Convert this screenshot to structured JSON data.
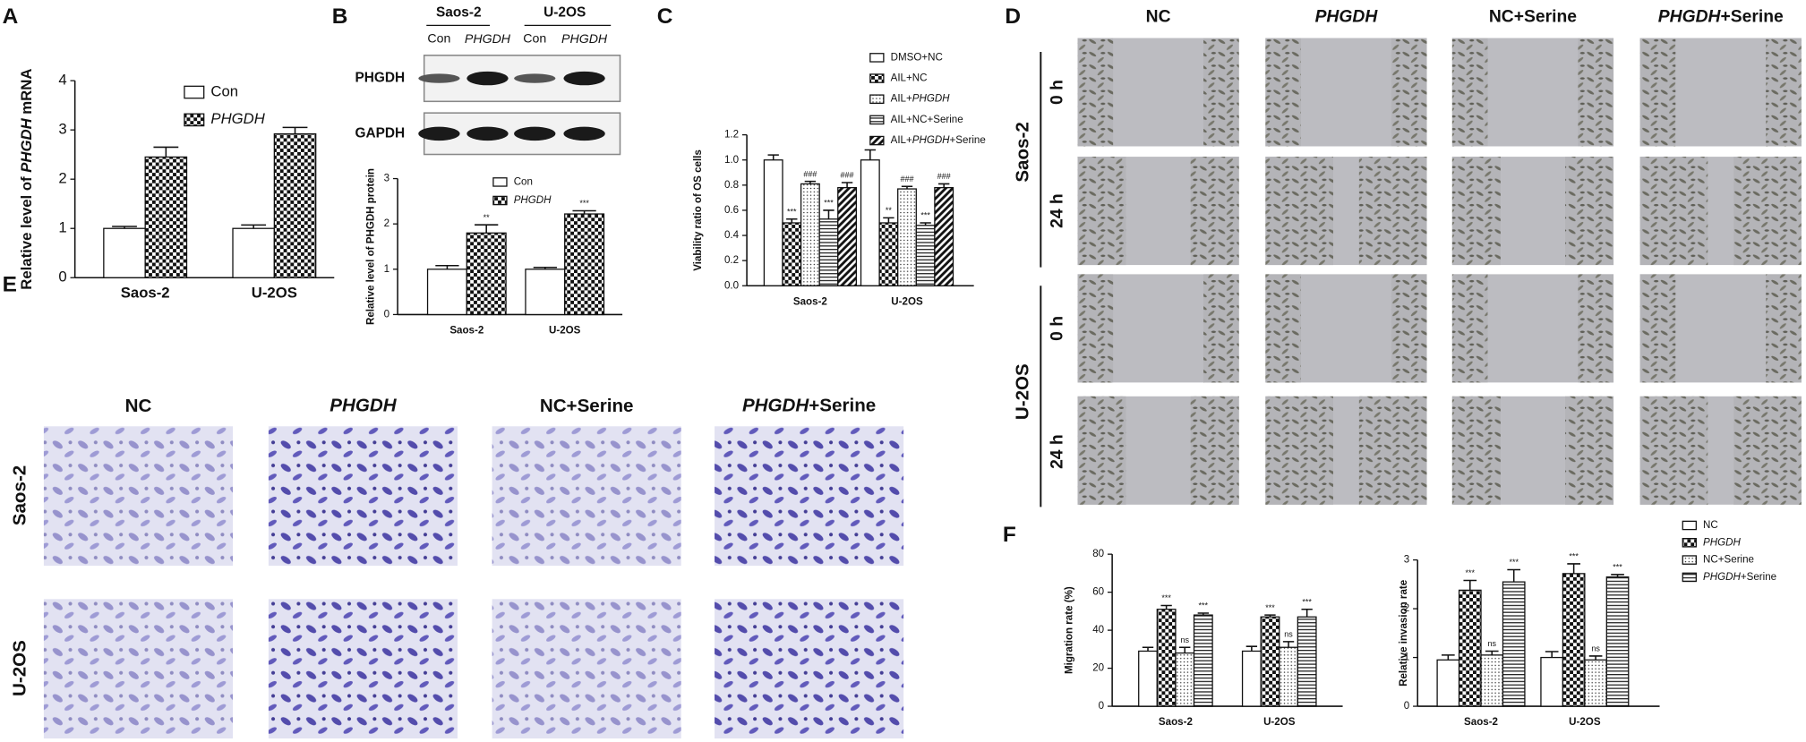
{
  "panel_labels": [
    "A",
    "B",
    "C",
    "D",
    "E",
    "F"
  ],
  "blot": {
    "cell_lines": [
      "Saos-2",
      "U-2OS"
    ],
    "lanes": [
      "Con",
      "PHGDH",
      "Con",
      "PHGDH"
    ],
    "proteins": [
      "PHGDH",
      "GAPDH"
    ]
  },
  "wound": {
    "groups": [
      "NC",
      "PHGDH",
      "NC+Serine",
      "PHGDH+Serine"
    ],
    "cell_lines": [
      "Saos-2",
      "U-2OS"
    ],
    "times": [
      "0 h",
      "24 h"
    ]
  },
  "transwell": {
    "groups": [
      "NC",
      "PHGDH",
      "NC+Serine",
      "PHGDH+Serine"
    ],
    "cell_lines": [
      "Saos-2",
      "U-2OS"
    ]
  },
  "chart_data": [
    {
      "type": "bar",
      "ylabel": "Relative level of PHGDH mRNA",
      "categories": [
        "Saos-2",
        "U-2OS"
      ],
      "series": [
        {
          "name": "Con",
          "pattern": "none",
          "values": [
            1.0,
            1.0
          ],
          "errors": [
            0.04,
            0.07
          ]
        },
        {
          "name": "PHGDH",
          "pattern": "checker",
          "values": [
            2.45,
            2.92
          ],
          "errors": [
            0.2,
            0.13
          ]
        }
      ],
      "ylim": [
        0,
        4
      ],
      "yticks": [
        0,
        1,
        2,
        3,
        4
      ],
      "legend": true
    },
    {
      "type": "bar",
      "ylabel": "Relative level of PHGDH protein",
      "categories": [
        "Saos-2",
        "U-2OS"
      ],
      "series": [
        {
          "name": "Con",
          "pattern": "none",
          "values": [
            1.0,
            1.0
          ],
          "errors": [
            0.08,
            0.04
          ]
        },
        {
          "name": "PHGDH",
          "pattern": "checker",
          "values": [
            1.8,
            2.22
          ],
          "errors": [
            0.18,
            0.07
          ],
          "annotations": [
            "**",
            "***"
          ]
        }
      ],
      "ylim": [
        0,
        3
      ],
      "yticks": [
        0,
        1,
        2,
        3
      ],
      "legend": true
    },
    {
      "type": "bar",
      "ylabel": "Viability ratio of OS cells",
      "categories": [
        "Saos-2",
        "U-2OS"
      ],
      "series": [
        {
          "name": "DMSO+NC",
          "pattern": "none",
          "values": [
            1.0,
            1.0
          ],
          "errors": [
            0.04,
            0.08
          ]
        },
        {
          "name": "AIL+NC",
          "pattern": "checker",
          "values": [
            0.5,
            0.5
          ],
          "errors": [
            0.03,
            0.04
          ],
          "annotations": [
            "***",
            "**"
          ]
        },
        {
          "name": "AIL+PHGDH",
          "pattern": "dots",
          "values": [
            0.81,
            0.77
          ],
          "errors": [
            0.02,
            0.02
          ],
          "annotations": [
            "###",
            "###"
          ]
        },
        {
          "name": "AIL+NC+Serine",
          "pattern": "hlines",
          "values": [
            0.53,
            0.48
          ],
          "errors": [
            0.07,
            0.02
          ],
          "annotations": [
            "***",
            "***"
          ]
        },
        {
          "name": "AIL+PHGDH+Serine",
          "pattern": "diagonal",
          "values": [
            0.78,
            0.78
          ],
          "errors": [
            0.04,
            0.03
          ],
          "annotations": [
            "###",
            "###"
          ]
        }
      ],
      "ylim": [
        0,
        1.2
      ],
      "yticks": [
        {
          "value": 0,
          "label": "0.0"
        },
        0.2,
        0.4,
        0.6,
        0.8,
        {
          "value": 1,
          "label": "1.0"
        },
        1.2
      ],
      "legend": true
    },
    {
      "type": "bar",
      "ylabel": "Migration rate (%)",
      "categories": [
        "Saos-2",
        "U-2OS"
      ],
      "series": [
        {
          "name": "NC",
          "pattern": "none",
          "values": [
            29,
            29
          ],
          "errors": [
            2,
            2.5
          ]
        },
        {
          "name": "PHGDH",
          "pattern": "checker",
          "values": [
            51,
            47
          ],
          "errors": [
            2,
            1
          ],
          "annotations": [
            "***",
            "***"
          ]
        },
        {
          "name": "NC+Serine",
          "pattern": "dots",
          "values": [
            28,
            31
          ],
          "errors": [
            3,
            3
          ],
          "annotations": [
            "ns",
            "ns"
          ]
        },
        {
          "name": "PHGDH+Serine",
          "pattern": "hlines",
          "values": [
            48,
            47
          ],
          "errors": [
            1,
            4
          ],
          "annotations": [
            "***",
            "***"
          ]
        }
      ],
      "ylim": [
        0,
        80
      ],
      "yticks": [
        0,
        20,
        40,
        60,
        80
      ],
      "legend": false
    },
    {
      "type": "bar",
      "ylabel": "Relative invasion rate",
      "categories": [
        "Saos-2",
        "U-2OS"
      ],
      "series": [
        {
          "name": "NC",
          "pattern": "none",
          "values": [
            0.95,
            1.0
          ],
          "errors": [
            0.1,
            0.12
          ]
        },
        {
          "name": "PHGDH",
          "pattern": "checker",
          "values": [
            2.38,
            2.72
          ],
          "errors": [
            0.2,
            0.2
          ],
          "annotations": [
            "***",
            "***"
          ]
        },
        {
          "name": "NC+Serine",
          "pattern": "dots",
          "values": [
            1.05,
            0.95
          ],
          "errors": [
            0.08,
            0.08
          ],
          "annotations": [
            "ns",
            "ns"
          ]
        },
        {
          "name": "PHGDH+Serine",
          "pattern": "hlines",
          "values": [
            2.55,
            2.65
          ],
          "errors": [
            0.25,
            0.05
          ],
          "annotations": [
            "***",
            "***"
          ]
        }
      ],
      "ylim": [
        0,
        3
      ],
      "yticks": [
        0,
        1,
        2,
        3
      ],
      "legend": true
    }
  ]
}
